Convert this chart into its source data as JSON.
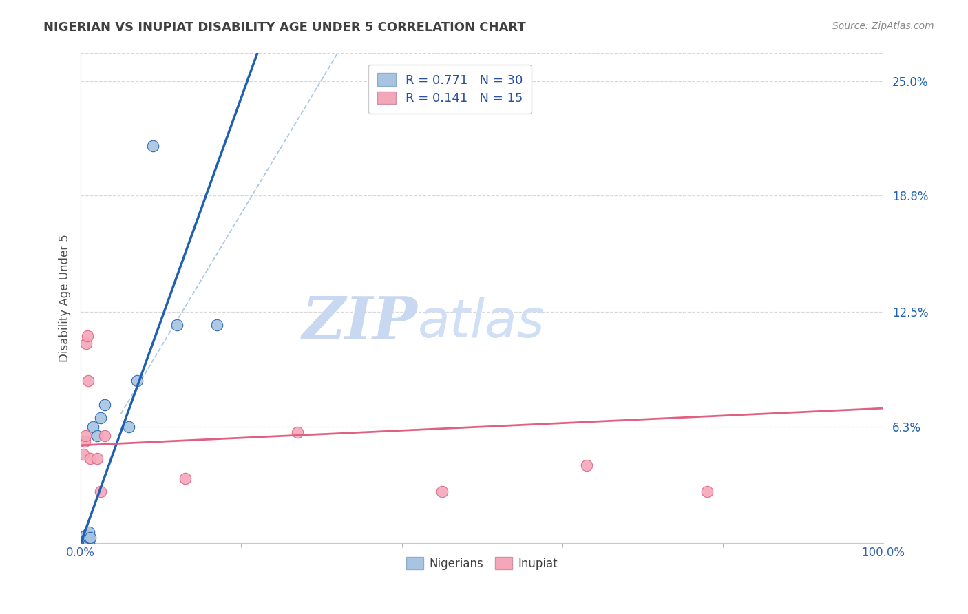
{
  "title": "NIGERIAN VS INUPIAT DISABILITY AGE UNDER 5 CORRELATION CHART",
  "source": "Source: ZipAtlas.com",
  "ylabel": "Disability Age Under 5",
  "legend_bottom": [
    "Nigerians",
    "Inupiat"
  ],
  "nigerian_R": "0.771",
  "nigerian_N": "30",
  "inupiat_R": "0.141",
  "inupiat_N": "15",
  "nigerian_color": "#a8c4e0",
  "inupiat_color": "#f4a7b9",
  "nigerian_line_color": "#2060b0",
  "inupiat_line_color": "#e06080",
  "dashed_line_color": "#a8c8e8",
  "watermark_color_zip": "#c8d8f0",
  "watermark_color_atlas": "#d0dff5",
  "background_color": "#ffffff",
  "grid_color": "#d8d8d8",
  "title_color": "#404040",
  "nigerian_scatter_x": [
    0.002,
    0.003,
    0.003,
    0.004,
    0.004,
    0.005,
    0.005,
    0.005,
    0.006,
    0.006,
    0.006,
    0.007,
    0.007,
    0.008,
    0.008,
    0.009,
    0.009,
    0.01,
    0.01,
    0.01,
    0.012,
    0.015,
    0.02,
    0.025,
    0.03,
    0.06,
    0.07,
    0.09,
    0.12,
    0.17
  ],
  "nigerian_scatter_y": [
    0.0,
    0.0,
    0.0,
    0.0,
    0.0,
    0.0,
    0.002,
    0.003,
    0.0,
    0.002,
    0.004,
    0.0,
    0.002,
    0.0,
    0.003,
    0.0,
    0.002,
    0.0,
    0.003,
    0.006,
    0.003,
    0.063,
    0.058,
    0.068,
    0.075,
    0.063,
    0.088,
    0.215,
    0.118,
    0.118
  ],
  "inupiat_scatter_x": [
    0.003,
    0.005,
    0.006,
    0.007,
    0.008,
    0.009,
    0.012,
    0.02,
    0.025,
    0.03,
    0.13,
    0.27,
    0.45,
    0.63,
    0.78
  ],
  "inupiat_scatter_y": [
    0.048,
    0.055,
    0.058,
    0.108,
    0.112,
    0.088,
    0.046,
    0.046,
    0.028,
    0.058,
    0.035,
    0.06,
    0.028,
    0.042,
    0.028
  ],
  "xlim": [
    0.0,
    1.0
  ],
  "ylim": [
    0.0,
    0.265
  ],
  "nigerian_line_x": [
    0.0,
    0.22
  ],
  "nigerian_line_y": [
    0.0,
    0.265
  ],
  "inupiat_line_x": [
    0.0,
    1.0
  ],
  "inupiat_line_y": [
    0.053,
    0.073
  ],
  "dashed_line_x": [
    0.05,
    0.32
  ],
  "dashed_line_y": [
    0.07,
    0.265
  ]
}
